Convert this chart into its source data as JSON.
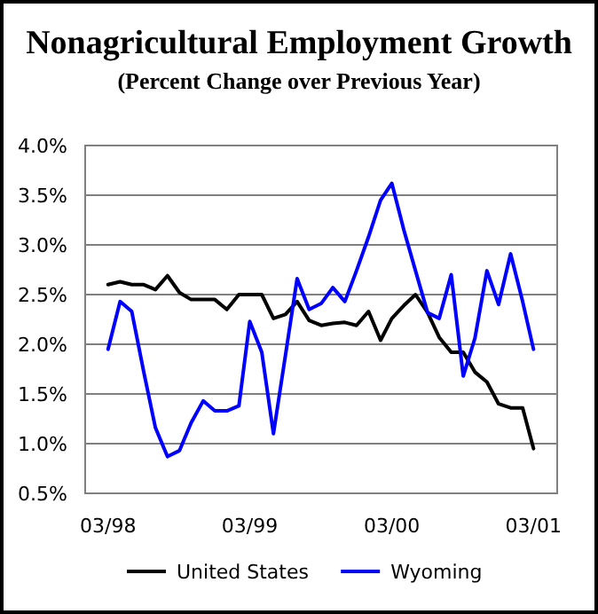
{
  "chart_data": {
    "type": "line",
    "title": "Nonagricultural Employment Growth",
    "subtitle": "(Percent Change over Previous Year)",
    "x": [
      "1998-03",
      "1998-04",
      "1998-05",
      "1998-06",
      "1998-07",
      "1998-08",
      "1998-09",
      "1998-10",
      "1998-11",
      "1998-12",
      "1999-01",
      "1999-02",
      "1999-03",
      "1999-04",
      "1999-05",
      "1999-06",
      "1999-07",
      "1999-08",
      "1999-09",
      "1999-10",
      "1999-11",
      "1999-12",
      "2000-01",
      "2000-02",
      "2000-03",
      "2000-04",
      "2000-05",
      "2000-06",
      "2000-07",
      "2000-08",
      "2000-09",
      "2000-10",
      "2000-11",
      "2000-12",
      "2001-01",
      "2001-02",
      "2001-03"
    ],
    "series": [
      {
        "name": "United States",
        "color": "#000000",
        "values": [
          2.6,
          2.63,
          2.6,
          2.6,
          2.55,
          2.69,
          2.52,
          2.45,
          2.45,
          2.45,
          2.35,
          2.5,
          2.5,
          2.5,
          2.26,
          2.3,
          2.43,
          2.24,
          2.19,
          2.21,
          2.22,
          2.19,
          2.33,
          2.04,
          2.26,
          2.39,
          2.5,
          2.32,
          2.07,
          1.92,
          1.92,
          1.72,
          1.62,
          1.4,
          1.36,
          1.36,
          0.95
        ]
      },
      {
        "name": "Wyoming",
        "color": "#0000ff",
        "values": [
          1.95,
          2.43,
          2.33,
          1.72,
          1.16,
          0.87,
          0.93,
          1.21,
          1.43,
          1.33,
          1.33,
          1.38,
          2.23,
          1.92,
          1.1,
          1.89,
          2.66,
          2.35,
          2.41,
          2.57,
          2.43,
          2.74,
          3.08,
          3.45,
          3.62,
          3.15,
          2.74,
          2.32,
          2.26,
          2.7,
          1.68,
          2.06,
          2.74,
          2.4,
          2.91,
          2.43,
          1.95
        ]
      }
    ],
    "xlim": [
      "1998-01",
      "2001-05"
    ],
    "xticks": [
      {
        "value": "1998-03",
        "label": "03/98"
      },
      {
        "value": "1999-03",
        "label": "03/99"
      },
      {
        "value": "2000-03",
        "label": "03/00"
      },
      {
        "value": "2001-03",
        "label": "03/01"
      }
    ],
    "ylim": [
      0.5,
      4.0
    ],
    "yticks": [
      {
        "value": 0.5,
        "label": "0.5%"
      },
      {
        "value": 1.0,
        "label": "1.0%"
      },
      {
        "value": 1.5,
        "label": "1.5%"
      },
      {
        "value": 2.0,
        "label": "2.0%"
      },
      {
        "value": 2.5,
        "label": "2.5%"
      },
      {
        "value": 3.0,
        "label": "3.0%"
      },
      {
        "value": 3.5,
        "label": "3.5%"
      },
      {
        "value": 4.0,
        "label": "4.0%"
      }
    ],
    "grid": "y",
    "legend": "bottom",
    "marker": "none",
    "line_style": "solid"
  }
}
